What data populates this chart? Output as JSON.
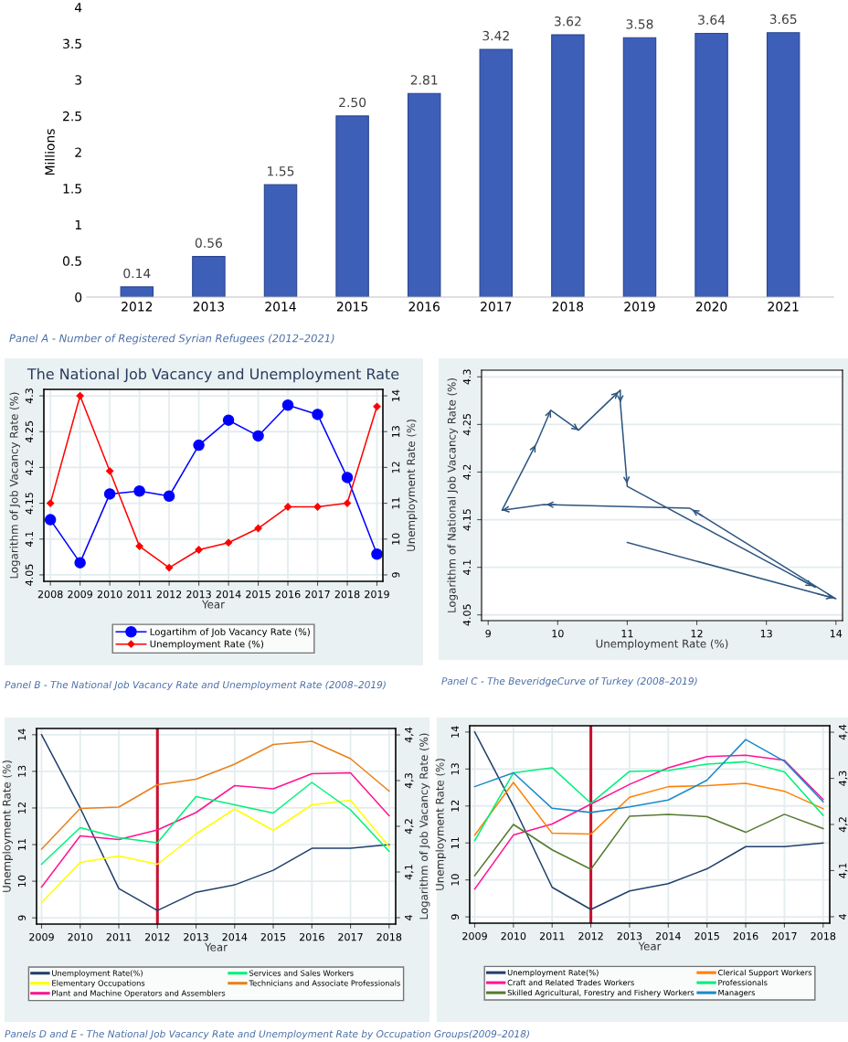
{
  "chart_data": [
    {
      "type": "bar",
      "ylabel": "Millions",
      "categories": [
        "2012",
        "2013",
        "2014",
        "2015",
        "2016",
        "2017",
        "2018",
        "2019",
        "2020",
        "2021"
      ],
      "values": [
        0.14,
        0.56,
        1.55,
        2.5,
        2.81,
        3.42,
        3.62,
        3.58,
        3.64,
        3.65
      ],
      "value_labels": [
        "0.14",
        "0.56",
        "1.55",
        "2.50",
        "2.81",
        "3.42",
        "3.62",
        "3.58",
        "3.64",
        "3.65"
      ],
      "color": "#3d5fb8",
      "ylim": [
        0,
        4
      ],
      "yticks": [
        0,
        0.5,
        1,
        1.5,
        2,
        2.5,
        3,
        3.5,
        4
      ],
      "grid": false,
      "annotations": [
        "Panel A - Number of Registered Syrian Refugees (2012–2021)"
      ]
    },
    {
      "type": "line",
      "title": "The National Job Vacancy and Unemployment Rate",
      "xlabel": "Year",
      "ylabel": "Logarithm of Job Vacancy Rate (%)",
      "y2label": "Unemployment Rate (%)",
      "x": [
        2008,
        2009,
        2010,
        2011,
        2012,
        2013,
        2014,
        2015,
        2016,
        2017,
        2018,
        2019
      ],
      "xlim": [
        2007.78,
        2019.2
      ],
      "xticks": [
        2008,
        2009,
        2010,
        2011,
        2012,
        2013,
        2014,
        2015,
        2016,
        2017,
        2018,
        2019
      ],
      "ylim": [
        4.041,
        4.309
      ],
      "yticks": [
        4.05,
        4.1,
        4.15,
        4.2,
        4.25,
        4.3
      ],
      "y2lim": [
        8.82,
        14.18
      ],
      "y2ticks": [
        9,
        10,
        11,
        12,
        13,
        14
      ],
      "grid": true,
      "legend": "bottom",
      "series": [
        {
          "name": "Logartihm of Job Vacancy Rate (%)",
          "color": "#0000ff",
          "marker": "circle",
          "values": [
            4.127,
            4.067,
            4.163,
            4.167,
            4.16,
            4.231,
            4.266,
            4.244,
            4.287,
            4.274,
            4.186,
            4.079
          ]
        },
        {
          "name": "Unemployment Rate (%)",
          "color": "#ff0000",
          "marker": "diamond",
          "axis": "y2",
          "values": [
            11,
            14,
            11.9,
            9.8,
            9.2,
            9.7,
            9.9,
            10.3,
            10.9,
            10.9,
            11.0,
            13.7
          ]
        }
      ],
      "annotations": [
        "Panel B - The National Job Vacancy Rate and Unemployment Rate (2008–2019)"
      ]
    },
    {
      "type": "line",
      "xlabel": "Unemployment Rate (%)",
      "ylabel": "Logarithm of National Job Vacancy Rate (%)",
      "xlim": [
        8.905,
        14.095
      ],
      "xticks": [
        9,
        10,
        11,
        12,
        13,
        14
      ],
      "ylim": [
        4.044,
        4.307
      ],
      "yticks": [
        4.05,
        4.1,
        4.15,
        4.2,
        4.25,
        4.3
      ],
      "grid": "y",
      "series": [
        {
          "color": "#2e5580",
          "x": [
            11,
            14,
            11.9,
            9.8,
            9.2,
            9.7,
            9.9,
            10.3,
            10.9,
            10.9,
            11.0,
            13.7
          ],
          "values": [
            4.126,
            4.067,
            4.162,
            4.166,
            4.16,
            4.231,
            4.265,
            4.244,
            4.286,
            4.273,
            4.185,
            4.079
          ]
        }
      ],
      "annotations": [
        "Panel C - The BeveridgeCurve of Turkey (2008–2019)"
      ]
    },
    {
      "type": "line",
      "xlabel": "Year",
      "ylabel": "Unemployment Rate (%)",
      "y2label": "Logarithm of Job Vacancy Rate (%)",
      "x": [
        2009,
        2010,
        2011,
        2012,
        2013,
        2014,
        2015,
        2016,
        2017,
        2018
      ],
      "xlim": [
        2008.87,
        2018.17
      ],
      "xticks": [
        2009,
        2010,
        2011,
        2012,
        2013,
        2014,
        2015,
        2016,
        2017,
        2018
      ],
      "ylim": [
        8.83,
        14.17
      ],
      "yticks": [
        9,
        10,
        11,
        12,
        13,
        14
      ],
      "y2lim": [
        3.986,
        4.414
      ],
      "y2ticks": [
        4,
        {
          "value": 4.1,
          "label": "4,1"
        },
        {
          "value": 4.2,
          "label": "4,2"
        },
        {
          "value": 4.3,
          "label": "4,3"
        },
        {
          "value": 4.4,
          "label": "4,4"
        }
      ],
      "grid": true,
      "legend": "bottom",
      "ref_lines": [
        {
          "axis": "x",
          "value": 2012,
          "color": "#c8102e"
        }
      ],
      "series": [
        {
          "name": "Unemployment Rate(%)",
          "color": "#1f3f6b",
          "values": [
            14,
            12.0,
            9.8,
            9.2,
            9.7,
            9.9,
            10.3,
            10.9,
            10.9,
            11.0
          ]
        },
        {
          "name": "Elementary Occupations",
          "color": "#ffff00",
          "axis": "y2",
          "values": [
            4.033,
            4.121,
            4.135,
            4.117,
            4.183,
            4.238,
            4.191,
            4.247,
            4.257,
            4.155
          ]
        },
        {
          "name": "Plant and Machine Operators and Assemblers",
          "color": "#ff1493",
          "axis": "y2",
          "values": [
            4.067,
            4.179,
            4.171,
            4.192,
            4.23,
            4.289,
            4.282,
            4.315,
            4.317,
            4.223
          ]
        },
        {
          "name": "Services and Sales Workers",
          "color": "#00f07a",
          "axis": "y2",
          "values": [
            4.117,
            4.197,
            4.175,
            4.164,
            4.265,
            4.247,
            4.229,
            4.296,
            4.236,
            4.145
          ]
        },
        {
          "name": "Technicians and Associate Professionals",
          "color": "#e8801a",
          "axis": "y2",
          "values": [
            4.15,
            4.239,
            4.242,
            4.291,
            4.303,
            4.336,
            4.379,
            4.386,
            4.348,
            4.277
          ]
        }
      ],
      "annotations": [
        "Panels D and E - The National Job Vacancy Rate and Unemployment Rate by Occupation Groups(2009–2018)"
      ]
    },
    {
      "type": "line",
      "xlabel": "Year",
      "ylabel": "Unemployment Rate (%)",
      "x": [
        2009,
        2010,
        2011,
        2012,
        2013,
        2014,
        2015,
        2016,
        2017,
        2018
      ],
      "xlim": [
        2008.87,
        2018.17
      ],
      "xticks": [
        2009,
        2010,
        2011,
        2012,
        2013,
        2014,
        2015,
        2016,
        2017,
        2018
      ],
      "ylim": [
        8.83,
        14.17
      ],
      "yticks": [
        9,
        10,
        11,
        12,
        13,
        14
      ],
      "y2lim": [
        3.986,
        4.414
      ],
      "y2ticks": [
        4,
        {
          "value": 4.1,
          "label": "4,1"
        },
        {
          "value": 4.2,
          "label": "4,2"
        },
        {
          "value": 4.3,
          "label": "4,3"
        },
        {
          "value": 4.4,
          "label": "4,4"
        }
      ],
      "grid": true,
      "legend": "bottom",
      "ref_lines": [
        {
          "axis": "x",
          "value": 2012,
          "color": "#c8102e"
        }
      ],
      "series": [
        {
          "name": "Unemployment Rate(%)",
          "color": "#1f3f6b",
          "values": [
            14,
            12.0,
            9.8,
            9.2,
            9.7,
            9.9,
            10.3,
            10.9,
            10.9,
            11.0
          ]
        },
        {
          "name": "Craft and Related Trades Workers",
          "color": "#ff1493",
          "axis": "y2",
          "values": [
            4.06,
            4.177,
            4.201,
            4.244,
            4.287,
            4.323,
            4.347,
            4.35,
            4.339,
            4.254
          ]
        },
        {
          "name": "Skilled Agricultural, Forestry and Fishery Workers",
          "color": "#557a2e",
          "axis": "y2",
          "values": [
            4.089,
            4.2,
            4.145,
            4.103,
            4.218,
            4.222,
            4.217,
            4.183,
            4.222,
            4.191
          ]
        },
        {
          "name": "Clerical Support Workers",
          "color": "#ff8000",
          "axis": "y2",
          "values": [
            4.177,
            4.291,
            4.181,
            4.179,
            4.259,
            4.282,
            4.284,
            4.289,
            4.272,
            4.234
          ]
        },
        {
          "name": "Professionals",
          "color": "#00f07a",
          "axis": "y2",
          "values": [
            4.165,
            4.312,
            4.323,
            4.246,
            4.315,
            4.317,
            4.331,
            4.336,
            4.314,
            4.22
          ]
        },
        {
          "name": "Managers",
          "color": "#1a8ac8",
          "axis": "y2",
          "values": [
            4.282,
            4.312,
            4.235,
            4.226,
            4.238,
            4.253,
            4.296,
            4.384,
            4.337,
            4.249
          ]
        }
      ]
    }
  ]
}
